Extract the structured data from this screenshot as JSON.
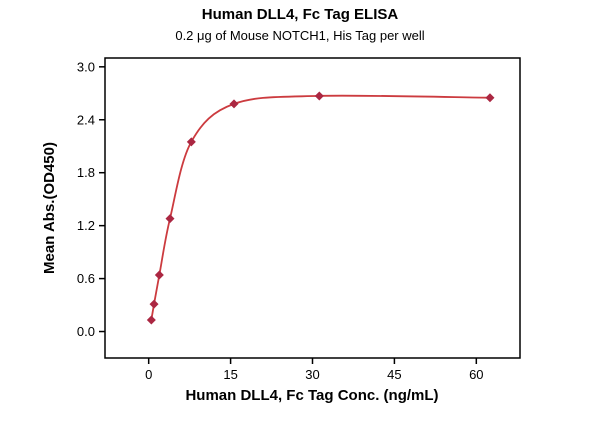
{
  "title": "Human DLL4, Fc Tag ELISA",
  "subtitle": "0.2 μg of Mouse NOTCH1, His Tag per well",
  "chart_data": {
    "type": "line",
    "title": "Human DLL4, Fc Tag ELISA",
    "subtitle": "0.2 μg of Mouse NOTCH1, His Tag per well",
    "xlabel": "Human DLL4, Fc Tag Conc. (ng/mL)",
    "ylabel": "Mean Abs.(OD450)",
    "x": [
      0.488,
      0.977,
      1.953,
      3.906,
      7.813,
      15.625,
      31.25,
      62.5
    ],
    "y": [
      0.13,
      0.31,
      0.64,
      1.28,
      2.15,
      2.58,
      2.67,
      2.65
    ],
    "xlim": [
      -8,
      68
    ],
    "ylim": [
      -0.3,
      3.1
    ],
    "xticks": [
      0,
      15,
      30,
      45,
      60
    ],
    "yticks": [
      0.0,
      0.6,
      1.2,
      1.8,
      2.4,
      3.0
    ],
    "grid": false,
    "legend": "none",
    "marker": "diamond",
    "line_color": "#cc3b3f",
    "marker_color": "#ab2742",
    "axis_color": "#000000"
  }
}
